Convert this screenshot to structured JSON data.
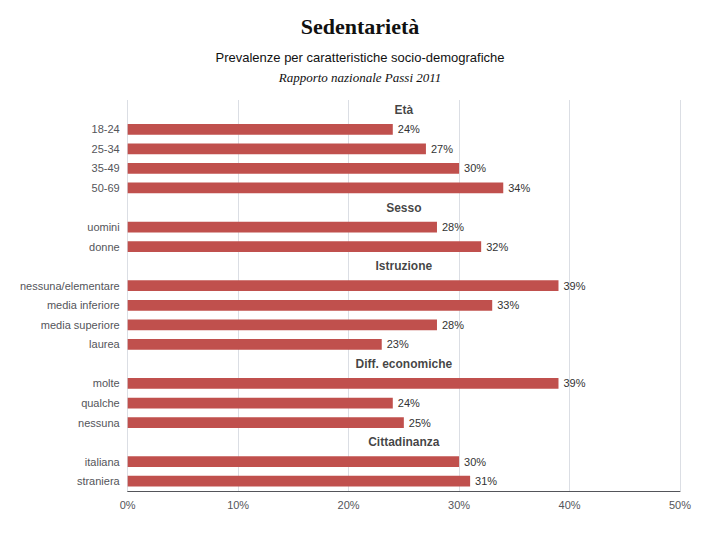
{
  "chart_data": {
    "type": "bar",
    "orientation": "horizontal",
    "title": "Sedentarietà",
    "subtitle": [
      "Prevalenze per caratteristiche socio-demografiche",
      "Rapporto nazionale Passi 2011"
    ],
    "categories": [
      null,
      "18-24",
      "25-34",
      "35-49",
      "50-69",
      null,
      "uomini",
      "donne",
      null,
      "nessuna/elementare",
      "media inferiore",
      "media superiore",
      "laurea",
      null,
      "molte",
      "qualche",
      "nessuna",
      null,
      "italiana",
      "straniera"
    ],
    "values": [
      null,
      24,
      27,
      30,
      34,
      null,
      28,
      32,
      null,
      39,
      33,
      28,
      23,
      null,
      39,
      24,
      25,
      null,
      30,
      31
    ],
    "value_labels": [
      null,
      "24%",
      "27%",
      "30%",
      "34%",
      null,
      "28%",
      "32%",
      null,
      "39%",
      "33%",
      "28%",
      "23%",
      null,
      "39%",
      "24%",
      "25%",
      null,
      "30%",
      "31%"
    ],
    "data_labels": true,
    "annotations": [
      {
        "text": "Età",
        "x": 25,
        "y": 0
      },
      {
        "text": "Sesso",
        "x": 25,
        "y": 5
      },
      {
        "text": "Istruzione",
        "x": 25,
        "y": 8
      },
      {
        "text": "Diff. economiche",
        "x": 25,
        "y": 13
      },
      {
        "text": "Cittadinanza",
        "x": 25,
        "y": 17
      }
    ],
    "color": "#c0504d",
    "xlim": [
      0,
      50
    ],
    "xticks": [
      {
        "value": 0,
        "label": "0%"
      },
      {
        "value": 10,
        "label": "10%"
      },
      {
        "value": 20,
        "label": "20%"
      },
      {
        "value": 30,
        "label": "30%"
      },
      {
        "value": 40,
        "label": "40%"
      },
      {
        "value": 50,
        "label": "50%"
      }
    ],
    "grid": true
  }
}
